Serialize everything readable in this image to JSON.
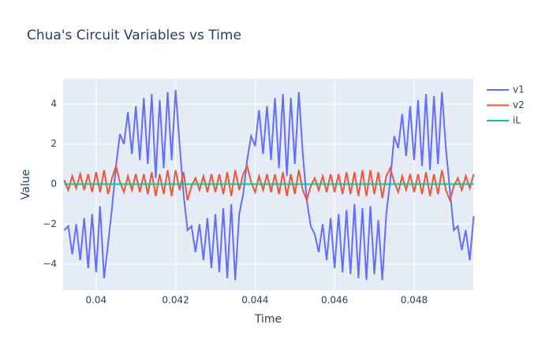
{
  "chart_data": {
    "type": "line",
    "title": "Chua's Circuit Variables vs Time",
    "x_label": "Time",
    "y_label": "Value",
    "x": [
      0.0392,
      0.0393,
      0.0394,
      0.0395,
      0.0396,
      0.0397,
      0.0398,
      0.0399,
      0.04,
      0.0401,
      0.0402,
      0.0403,
      0.0404,
      0.0405,
      0.0406,
      0.0407,
      0.0408,
      0.0409,
      0.041,
      0.0411,
      0.0412,
      0.0413,
      0.0414,
      0.0415,
      0.0416,
      0.0417,
      0.0418,
      0.0419,
      0.042,
      0.0421,
      0.0422,
      0.0423,
      0.0424,
      0.0425,
      0.0426,
      0.0427,
      0.0428,
      0.0429,
      0.043,
      0.0431,
      0.0432,
      0.0433,
      0.0434,
      0.0435,
      0.0436,
      0.0437,
      0.0438,
      0.0439,
      0.044,
      0.0441,
      0.0442,
      0.0443,
      0.0444,
      0.0445,
      0.0446,
      0.0447,
      0.0448,
      0.0449,
      0.045,
      0.0451,
      0.0452,
      0.0453,
      0.0454,
      0.0455,
      0.0456,
      0.0457,
      0.0458,
      0.0459,
      0.046,
      0.0461,
      0.0462,
      0.0463,
      0.0464,
      0.0465,
      0.0466,
      0.0467,
      0.0468,
      0.0469,
      0.047,
      0.0471,
      0.0472,
      0.0473,
      0.0474,
      0.0475,
      0.0476,
      0.0477,
      0.0478,
      0.0479,
      0.048,
      0.0481,
      0.0482,
      0.0483,
      0.0484,
      0.0485,
      0.0486,
      0.0487,
      0.0488,
      0.0489,
      0.049,
      0.0491,
      0.0492,
      0.0493,
      0.0494,
      0.0495
    ],
    "series": [
      {
        "name": "v1",
        "color": "#636efa",
        "values": [
          -2.3,
          -2.1,
          -3.5,
          -2.0,
          -3.8,
          -1.7,
          -4.2,
          -1.5,
          -4.4,
          -1.1,
          -4.7,
          -3.0,
          -1.2,
          0.9,
          2.5,
          2.0,
          3.6,
          1.5,
          3.9,
          1.2,
          4.3,
          1.0,
          4.5,
          0.3,
          4.2,
          0.8,
          4.6,
          1.2,
          4.7,
          2.0,
          -0.5,
          -2.3,
          -2.1,
          -3.4,
          -2.0,
          -3.8,
          -1.7,
          -4.2,
          -1.5,
          -4.4,
          -1.2,
          -4.7,
          -1.0,
          -4.8,
          -1.5,
          -0.5,
          1.2,
          2.4,
          1.9,
          3.7,
          1.5,
          3.9,
          1.2,
          4.3,
          0.8,
          4.5,
          0.4,
          4.3,
          1.0,
          4.6,
          1.5,
          -0.8,
          -2.1,
          -2.5,
          -3.4,
          -2.0,
          -3.8,
          -1.7,
          -4.2,
          -1.5,
          -4.4,
          -1.3,
          -4.5,
          -1.0,
          -4.7,
          -1.2,
          -4.8,
          -1.1,
          -4.5,
          -1.8,
          -4.8,
          -1.5,
          0.2,
          2.4,
          1.8,
          3.5,
          1.4,
          3.9,
          1.2,
          4.2,
          0.9,
          4.5,
          0.7,
          4.4,
          1.0,
          4.6,
          1.8,
          -0.3,
          -2.3,
          -2.1,
          -3.3,
          -2.3,
          -3.8,
          -1.6
        ]
      },
      {
        "name": "v2",
        "color": "#ef553b",
        "values": [
          0.2,
          -0.3,
          0.4,
          -0.2,
          0.5,
          -0.3,
          0.5,
          -0.4,
          0.6,
          -0.4,
          0.7,
          -0.5,
          0.3,
          0.9,
          0.1,
          -0.4,
          0.4,
          -0.3,
          0.5,
          -0.4,
          0.5,
          -0.5,
          0.6,
          -0.6,
          0.5,
          -0.5,
          0.7,
          -0.6,
          0.7,
          -0.3,
          0.6,
          -0.8,
          -0.1,
          0.3,
          -0.3,
          0.4,
          -0.4,
          0.5,
          -0.4,
          0.5,
          -0.5,
          0.6,
          -0.6,
          0.7,
          -0.3,
          0.5,
          0.9,
          0.1,
          -0.4,
          0.4,
          -0.3,
          0.5,
          -0.4,
          0.5,
          -0.5,
          0.6,
          -0.6,
          0.5,
          -0.5,
          0.7,
          -0.3,
          -0.8,
          -0.1,
          0.3,
          -0.3,
          0.4,
          -0.4,
          0.5,
          -0.4,
          0.5,
          -0.5,
          0.6,
          -0.5,
          0.6,
          -0.6,
          0.7,
          -0.6,
          0.7,
          -0.5,
          0.6,
          -0.7,
          0.4,
          0.8,
          0.1,
          -0.4,
          0.4,
          -0.3,
          0.5,
          -0.4,
          0.5,
          -0.5,
          0.6,
          -0.6,
          0.5,
          -0.5,
          0.7,
          -0.3,
          -0.8,
          -0.1,
          0.3,
          -0.3,
          0.4,
          -0.2,
          0.5
        ]
      },
      {
        "name": "iL",
        "color": "#00cc96",
        "values": [
          0,
          0,
          0,
          0,
          0,
          0,
          0,
          0,
          0,
          0,
          0,
          0,
          0,
          0,
          0,
          0,
          0,
          0,
          0,
          0,
          0,
          0,
          0,
          0,
          0,
          0,
          0,
          0,
          0,
          0,
          0,
          0,
          0,
          0,
          0,
          0,
          0,
          0,
          0,
          0,
          0,
          0,
          0,
          0,
          0,
          0,
          0,
          0,
          0,
          0,
          0,
          0,
          0,
          0,
          0,
          0,
          0,
          0,
          0,
          0,
          0,
          0,
          0,
          0,
          0,
          0,
          0,
          0,
          0,
          0,
          0,
          0,
          0,
          0,
          0,
          0,
          0,
          0,
          0,
          0,
          0,
          0,
          0,
          0,
          0,
          0,
          0,
          0,
          0,
          0,
          0,
          0,
          0,
          0,
          0,
          0,
          0,
          0,
          0,
          0,
          0,
          0,
          0,
          0
        ]
      }
    ],
    "xlim": [
      0.03917,
      0.04949
    ],
    "xticks": [
      0.04,
      0.042,
      0.044,
      0.046,
      0.048
    ],
    "ylim": [
      -5.3,
      5.26
    ],
    "yticks": [
      {
        "value": -4,
        "label": "−4"
      },
      {
        "value": -2,
        "label": "−2"
      },
      0,
      2,
      4
    ],
    "grid": true,
    "legend": "top-right"
  }
}
